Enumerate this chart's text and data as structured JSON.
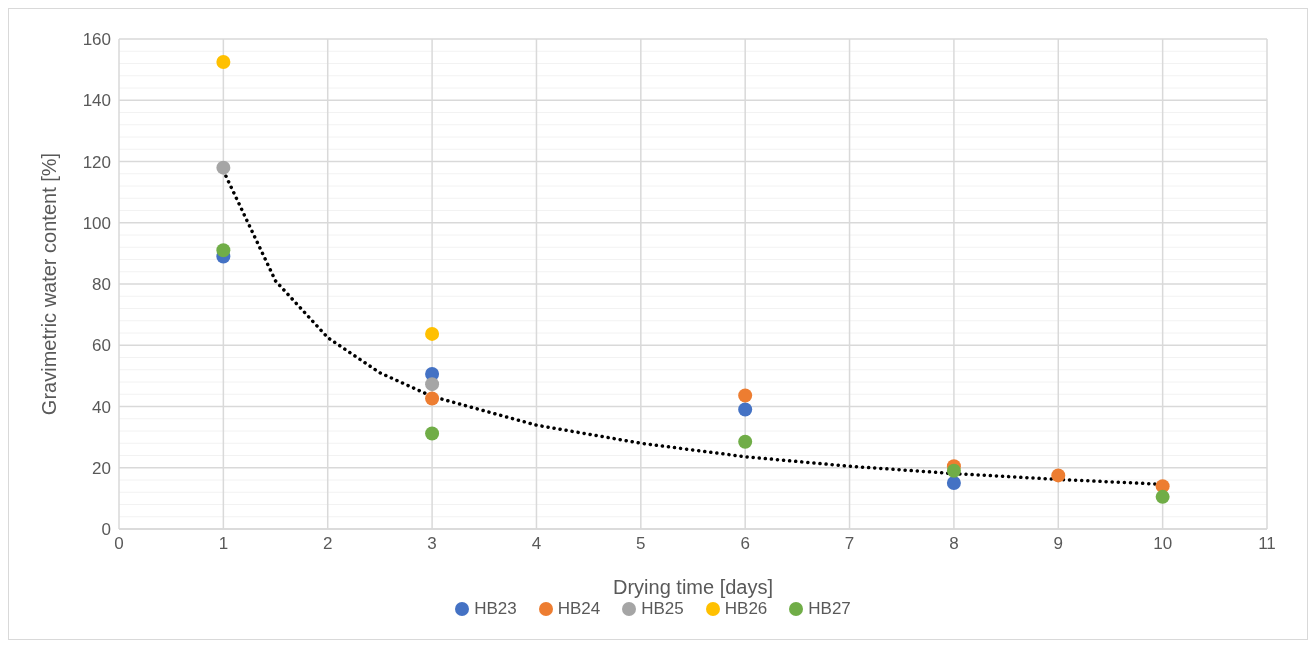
{
  "chart_data": {
    "type": "scatter",
    "xlabel": "Drying time [days]",
    "ylabel": "Gravimetric water content [%]",
    "x": [
      1,
      3,
      6,
      8,
      9,
      10
    ],
    "series": [
      {
        "name": "HB23",
        "color": "#4472c4",
        "values": [
          89,
          50.6,
          39,
          15,
          null,
          null
        ]
      },
      {
        "name": "HB24",
        "color": "#ed7d31",
        "values": [
          null,
          42.6,
          43.6,
          20.5,
          17.5,
          14
        ]
      },
      {
        "name": "HB25",
        "color": "#a5a5a5",
        "values": [
          118,
          47.3,
          null,
          null,
          null,
          null
        ]
      },
      {
        "name": "HB26",
        "color": "#ffc000",
        "values": [
          152.5,
          63.7,
          null,
          null,
          null,
          null
        ]
      },
      {
        "name": "HB27",
        "color": "#70ad47",
        "values": [
          91,
          31.2,
          28.5,
          19,
          null,
          10.5
        ]
      },
      {
        "type": "line",
        "color": "#000000",
        "line_style": "dotted",
        "marker": "none",
        "x": [
          1,
          1.5,
          2,
          2.5,
          3,
          4,
          5,
          6,
          7,
          8,
          9,
          10
        ],
        "values": [
          117,
          81,
          62.5,
          51,
          43.3,
          33.9,
          28,
          23.6,
          20.5,
          18.1,
          16.2,
          14.6
        ]
      }
    ],
    "xlim": [
      0,
      11
    ],
    "xticks": [
      0,
      1,
      2,
      3,
      4,
      5,
      6,
      7,
      8,
      9,
      10,
      11
    ],
    "ylim": [
      0,
      160
    ],
    "yticks": [
      0,
      {
        "value": 4,
        "label": null
      },
      {
        "value": 8,
        "label": null
      },
      {
        "value": 12,
        "label": null
      },
      {
        "value": 16,
        "label": null
      },
      20,
      {
        "value": 24,
        "label": null
      },
      {
        "value": 28,
        "label": null
      },
      {
        "value": 32,
        "label": null
      },
      {
        "value": 36,
        "label": null
      },
      40,
      {
        "value": 44,
        "label": null
      },
      {
        "value": 48,
        "label": null
      },
      {
        "value": 52,
        "label": null
      },
      {
        "value": 56,
        "label": null
      },
      60,
      {
        "value": 64,
        "label": null
      },
      {
        "value": 68,
        "label": null
      },
      {
        "value": 72,
        "label": null
      },
      {
        "value": 76,
        "label": null
      },
      80,
      {
        "value": 84,
        "label": null
      },
      {
        "value": 88,
        "label": null
      },
      {
        "value": 92,
        "label": null
      },
      {
        "value": 96,
        "label": null
      },
      100,
      {
        "value": 104,
        "label": null
      },
      {
        "value": 108,
        "label": null
      },
      {
        "value": 112,
        "label": null
      },
      {
        "value": 116,
        "label": null
      },
      120,
      {
        "value": 124,
        "label": null
      },
      {
        "value": 128,
        "label": null
      },
      {
        "value": 132,
        "label": null
      },
      {
        "value": 136,
        "label": null
      },
      140,
      {
        "value": 144,
        "label": null
      },
      {
        "value": 148,
        "label": null
      },
      {
        "value": 152,
        "label": null
      },
      {
        "value": 156,
        "label": null
      },
      160
    ],
    "grid": true,
    "legend": "bottom",
    "marker": "circle"
  }
}
